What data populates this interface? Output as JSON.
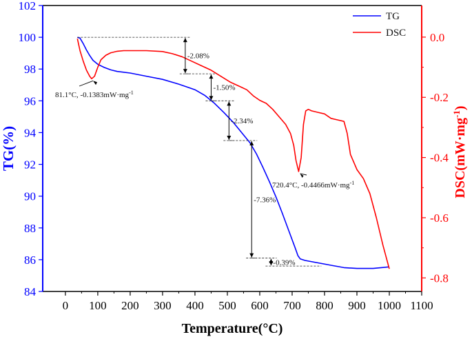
{
  "chart_data": {
    "type": "line",
    "x_axis": {
      "label": "Temperature(°C)",
      "ticks": [
        0,
        100,
        200,
        300,
        400,
        500,
        600,
        700,
        800,
        900,
        1000,
        1100
      ],
      "range": [
        -70,
        1100
      ]
    },
    "y_left": {
      "label": "TG(%)",
      "ticks": [
        84,
        86,
        88,
        90,
        92,
        94,
        96,
        98,
        100,
        102
      ],
      "range": [
        84,
        102
      ]
    },
    "y_right": {
      "label_prefix": "DSC(mW·mg",
      "label_exp": "-1",
      "label_suffix": ")",
      "ticks": [
        0.0,
        -0.2,
        -0.4,
        -0.6,
        -0.8
      ],
      "tick_labels": [
        "0.0",
        "-0.2",
        "-0.4",
        "-0.6",
        "-0.8"
      ],
      "range": [
        -0.845,
        0.105
      ]
    },
    "legend": {
      "position": "top-right",
      "entries": [
        {
          "name": "TG",
          "color": "#0000ff"
        },
        {
          "name": "DSC",
          "color": "#ff0000"
        }
      ]
    },
    "series": [
      {
        "name": "TG",
        "axis": "left",
        "color": "#0000ff",
        "x": [
          37,
          45,
          55,
          65,
          75,
          85,
          100,
          120,
          140,
          160,
          180,
          200,
          250,
          300,
          350,
          400,
          430,
          460,
          490,
          520,
          550,
          570,
          590,
          610,
          630,
          650,
          670,
          690,
          710,
          718,
          725,
          740,
          780,
          820,
          860,
          900,
          950,
          1000
        ],
        "y": [
          100.0,
          99.95,
          99.6,
          99.2,
          98.85,
          98.55,
          98.3,
          98.1,
          97.95,
          97.85,
          97.8,
          97.75,
          97.55,
          97.35,
          97.05,
          96.7,
          96.35,
          95.85,
          95.25,
          94.6,
          93.85,
          93.35,
          92.65,
          91.8,
          90.9,
          89.95,
          88.9,
          87.8,
          86.7,
          86.25,
          86.05,
          85.95,
          85.8,
          85.65,
          85.5,
          85.45,
          85.45,
          85.55
        ]
      },
      {
        "name": "DSC",
        "axis": "right",
        "color": "#ff0000",
        "x": [
          37,
          45,
          55,
          65,
          75,
          81,
          90,
          100,
          110,
          125,
          140,
          160,
          180,
          200,
          250,
          300,
          330,
          360,
          390,
          420,
          450,
          480,
          510,
          540,
          560,
          580,
          600,
          620,
          640,
          660,
          680,
          695,
          705,
          712,
          720,
          728,
          735,
          742,
          750,
          760,
          780,
          800,
          820,
          840,
          860,
          870,
          880,
          900,
          920,
          940,
          960,
          980,
          1000
        ],
        "y": [
          -0.005,
          -0.045,
          -0.08,
          -0.11,
          -0.13,
          -0.1383,
          -0.13,
          -0.1,
          -0.075,
          -0.06,
          -0.052,
          -0.047,
          -0.045,
          -0.045,
          -0.045,
          -0.048,
          -0.055,
          -0.065,
          -0.08,
          -0.095,
          -0.11,
          -0.13,
          -0.15,
          -0.165,
          -0.175,
          -0.195,
          -0.21,
          -0.22,
          -0.24,
          -0.265,
          -0.29,
          -0.32,
          -0.36,
          -0.41,
          -0.4466,
          -0.4,
          -0.29,
          -0.245,
          -0.24,
          -0.245,
          -0.25,
          -0.255,
          -0.27,
          -0.275,
          -0.28,
          -0.32,
          -0.39,
          -0.44,
          -0.47,
          -0.52,
          -0.6,
          -0.69,
          -0.77
        ]
      }
    ],
    "annotations": [
      {
        "text": "81.1°C, -0.1383mW·mg",
        "exp": "-1",
        "point_x": 81.1,
        "point_y_dsc": -0.1383
      },
      {
        "text": "720.4°C, -0.4466mW·mg",
        "exp": "-1",
        "point_x": 720.4,
        "point_y_dsc": -0.4466
      }
    ],
    "mass_loss_steps": [
      {
        "label": "-2.08%",
        "x_at": 370,
        "y_from": 100.0,
        "y_to": 97.7
      },
      {
        "label": "-1.50%",
        "x_at": 450,
        "y_from": 97.7,
        "y_to": 96.0
      },
      {
        "label": "-2.34%",
        "x_at": 505,
        "y_from": 96.0,
        "y_to": 93.5
      },
      {
        "label": "-7.36%",
        "x_at": 575,
        "y_from": 93.5,
        "y_to": 86.1
      },
      {
        "label": "-0.39%",
        "x_at": 635,
        "y_from": 86.1,
        "y_to": 85.6
      }
    ]
  }
}
